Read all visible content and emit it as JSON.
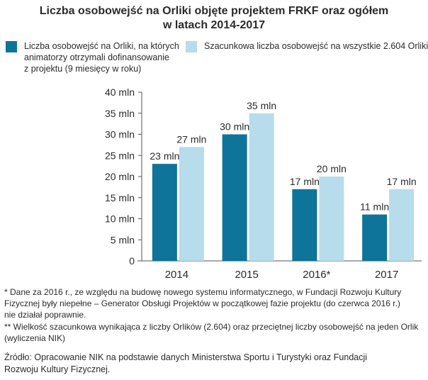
{
  "colors": {
    "series_dark": "#0e7499",
    "series_light": "#b7dcec",
    "axis": "#555555",
    "text": "#2b2b2b"
  },
  "title": {
    "line1": "Liczba osobowejść na Orliki objęte projektem FRKF oraz ogółem",
    "line2": "w latach 2014-2017"
  },
  "legend": {
    "series1": {
      "line1": "Liczba osobowejść na Orliki, na których",
      "line2": "animatorzy otrzymali dofinansowanie",
      "line3": "z projektu (9 miesięcy w roku)"
    },
    "series2": {
      "line1": "Szacunkowa liczba osobowejść na wszystkie 2.604 Orliki**"
    }
  },
  "chart_data": {
    "type": "bar",
    "categories": [
      "2014",
      "2015",
      "2016*",
      "2017"
    ],
    "series": [
      {
        "name": "Liczba osobowejść na Orliki, na których animatorzy otrzymali dofinansowanie z projektu (9 miesięcy w roku)",
        "values": [
          23,
          30,
          17,
          11
        ],
        "labels": [
          "23 mln",
          "30 mln",
          "17 mln",
          "11 mln"
        ]
      },
      {
        "name": "Szacunkowa liczba osobowejść na wszystkie 2.604 Orliki**",
        "values": [
          27,
          35,
          20,
          17
        ],
        "labels": [
          "27 mln",
          "35 mln",
          "20 mln",
          "17 mln"
        ]
      }
    ],
    "yticks": [
      0,
      5,
      10,
      15,
      20,
      25,
      30,
      35,
      40
    ],
    "ytick_labels": [
      "0",
      "5 mln",
      "10 mln",
      "15 mln",
      "20 mln",
      "25 mln",
      "30 mln",
      "35 mln",
      "40 mln"
    ],
    "ylim": [
      0,
      40
    ],
    "grid": false,
    "legend_position": "top"
  },
  "notes": {
    "note1": {
      "line1": "*  Dane za 2016 r., ze względu na budowę nowego systemu informatycznego, w Fundacji Rozwoju Kultury",
      "line2": "Fizycznej były niepełne – Generator Obsługi Projektów w początkowej fazie projektu (do czerwca 2016 r.)",
      "line3": "nie działał poprawnie."
    },
    "note2": {
      "line1": "**  Wielkość szacunkowa wynikająca z liczby Orlików (2.604) oraz przeciętnej liczby osobowejść na jeden Orlik",
      "line2": "(wyliczenia NIK)"
    }
  },
  "source": {
    "line1": "Źródło:  Opracowanie  NIK na podstawie  danych  Ministerstwa  Sportu  i  Turystyki  oraz  Fundacji",
    "line2": "Rozwoju  Kultury  Fizycznej."
  }
}
